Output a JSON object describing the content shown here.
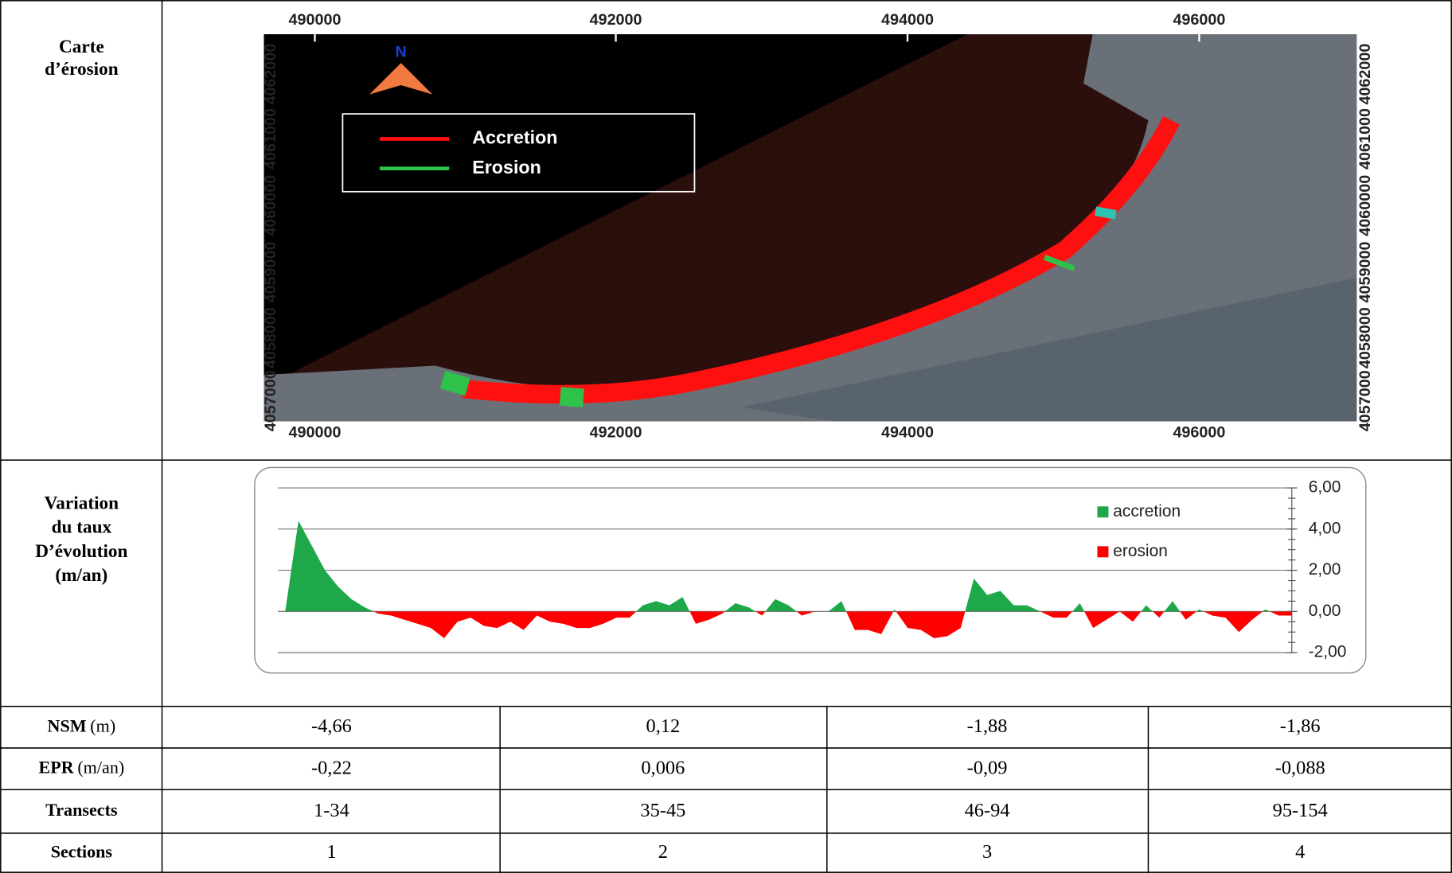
{
  "map_row": {
    "label": [
      "Carte",
      "d’érosion"
    ],
    "x_labels": [
      "490000",
      "492000",
      "494000",
      "496000"
    ],
    "y_labels": [
      "4062000",
      "4061000",
      "4060000",
      "4059000",
      "4058000",
      "4057000"
    ],
    "north": "N",
    "legend": [
      "Accretion",
      "Erosion"
    ]
  },
  "chart_row": {
    "label": [
      "Variation",
      "du taux",
      "D’évolution",
      "(m/an)"
    ],
    "chart": {
      "type": "area",
      "series": [
        {
          "name": "accretion",
          "color": "#1ea84a"
        },
        {
          "name": "erosion",
          "color": "#ff0000"
        }
      ],
      "values": [
        0,
        4.4,
        3.2,
        2.0,
        1.2,
        0.6,
        0.2,
        -0.1,
        -0.2,
        -0.4,
        -0.6,
        -0.8,
        -1.3,
        -0.5,
        -0.3,
        -0.7,
        -0.8,
        -0.5,
        -0.9,
        -0.2,
        -0.5,
        -0.6,
        -0.8,
        -0.8,
        -0.6,
        -0.3,
        -0.3,
        0.3,
        0.5,
        0.3,
        0.7,
        -0.6,
        -0.4,
        -0.1,
        0.4,
        0.2,
        -0.2,
        0.6,
        0.3,
        -0.2,
        0,
        0,
        0.5,
        -0.9,
        -0.9,
        -1.1,
        0.1,
        -0.8,
        -0.9,
        -1.3,
        -1.2,
        -0.8,
        1.6,
        0.8,
        1.0,
        0.3,
        0.3,
        0,
        -0.3,
        -0.3,
        0.4,
        -0.8,
        -0.4,
        0,
        -0.5,
        0.3,
        -0.3,
        0.5,
        -0.4,
        0.1,
        -0.2,
        -0.3,
        -1.0,
        -0.4,
        0.1,
        -0.2,
        -0.2
      ],
      "ylim": [
        -2,
        6
      ],
      "yticks": [
        {
          "value": 6,
          "label": "6,00"
        },
        {
          "value": 4,
          "label": "4,00"
        },
        {
          "value": 2,
          "label": "2,00"
        },
        {
          "value": 0,
          "label": "0,00"
        },
        {
          "value": -2,
          "label": "-2,00"
        }
      ],
      "grid": true
    }
  },
  "rows": [
    {
      "label": "NSM",
      "unit": "(m)",
      "cells": [
        "-4,66",
        "0,12",
        "-1,88",
        "-1,86"
      ]
    },
    {
      "label": "EPR",
      "unit": "(m/an)",
      "cells": [
        "-0,22",
        "0,006",
        "-0,09",
        "-0,088"
      ]
    },
    {
      "label": "Transects",
      "cells": [
        "1-34",
        "35-45",
        "46-94",
        "95-154"
      ]
    },
    {
      "label": "Sections",
      "cells": [
        "1",
        "2",
        "3",
        "4"
      ]
    }
  ]
}
